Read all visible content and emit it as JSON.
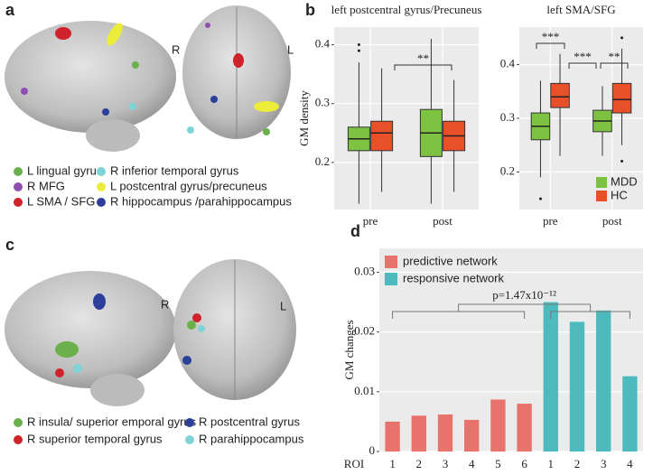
{
  "panels": {
    "a": {
      "label": "a",
      "sides": [
        "R",
        "L"
      ],
      "legend": [
        {
          "label": "L lingual gyrus",
          "color": "#6ab04c"
        },
        {
          "label": "R MFG",
          "color": "#8e4fb0"
        },
        {
          "label": "L SMA / SFG",
          "color": "#d0222a"
        },
        {
          "label": "R inferior temporal gyrus",
          "color": "#7fd3d6"
        },
        {
          "label": "L postcentral gyrus/precuneus",
          "color": "#ecec3a"
        },
        {
          "label": "R hippocampus /parahippocampus",
          "color": "#2c3f9a"
        }
      ]
    },
    "c": {
      "label": "c",
      "sides": [
        "R",
        "L"
      ],
      "legend": [
        {
          "label": "R insula/ superior emporal gyrus",
          "color": "#6ab04c"
        },
        {
          "label": "R postcentral gyrus",
          "color": "#2c3f9a"
        },
        {
          "label": "R superior temporal gyrus",
          "color": "#d0222a"
        },
        {
          "label": "R parahippocampus",
          "color": "#7fd3d6"
        }
      ]
    }
  },
  "chart_data": [
    {
      "type": "box",
      "panel_label": "b",
      "title": "left postcentral gyrus/Precuneus",
      "y_label": "GM density",
      "categories": [
        "pre",
        "post"
      ],
      "series": [
        {
          "color": "#7ec242",
          "values": [
            {
              "min": 0.13,
              "q1": 0.22,
              "median": 0.24,
              "q3": 0.26,
              "max": 0.37,
              "outliers": [
                0.39,
                0.4
              ]
            },
            {
              "min": 0.13,
              "q1": 0.21,
              "median": 0.25,
              "q3": 0.29,
              "max": 0.41,
              "outliers": []
            }
          ]
        },
        {
          "color": "#e8502a",
          "values": [
            {
              "min": 0.15,
              "q1": 0.22,
              "median": 0.25,
              "q3": 0.27,
              "max": 0.36,
              "outliers": []
            },
            {
              "min": 0.15,
              "q1": 0.22,
              "median": 0.245,
              "q3": 0.27,
              "max": 0.34,
              "outliers": []
            }
          ]
        }
      ],
      "ylim": [
        0.12,
        0.43
      ],
      "yticks": [
        0.2,
        0.3,
        0.4
      ],
      "annotations": [
        "**"
      ]
    },
    {
      "type": "box",
      "title": "left SMA/SFG",
      "categories": [
        "pre",
        "post"
      ],
      "series": [
        {
          "name": "MDD",
          "color": "#7ec242",
          "values": [
            {
              "min": 0.19,
              "q1": 0.26,
              "median": 0.285,
              "q3": 0.31,
              "max": 0.37,
              "outliers": [
                0.15
              ]
            },
            {
              "min": 0.23,
              "q1": 0.275,
              "median": 0.295,
              "q3": 0.315,
              "max": 0.36,
              "outliers": []
            }
          ]
        },
        {
          "name": "HC",
          "color": "#e8502a",
          "values": [
            {
              "min": 0.23,
              "q1": 0.32,
              "median": 0.34,
              "q3": 0.365,
              "max": 0.42,
              "outliers": []
            },
            {
              "min": 0.25,
              "q1": 0.31,
              "median": 0.335,
              "q3": 0.365,
              "max": 0.43,
              "outliers": [
                0.45,
                0.22
              ]
            }
          ]
        }
      ],
      "ylim": [
        0.13,
        0.47
      ],
      "yticks": [
        0.2,
        0.3,
        0.4
      ],
      "annotations": [
        "***",
        "***",
        "**"
      ]
    },
    {
      "type": "bar",
      "panel_label": "d",
      "y_label": "GM changes",
      "x_label": "ROI",
      "categories": [
        "1",
        "2",
        "3",
        "4",
        "5",
        "6",
        "1",
        "2",
        "3",
        "4"
      ],
      "series": [
        {
          "name": "predictive network",
          "color": "#e8736c",
          "values": [
            0.005,
            0.006,
            0.0062,
            0.0053,
            0.0087,
            0.008,
            null,
            null,
            null,
            null
          ]
        },
        {
          "name": "responsive network",
          "color": "#4dbbbd",
          "values": [
            null,
            null,
            null,
            null,
            null,
            null,
            0.025,
            0.0217,
            0.0236,
            0.0126
          ]
        }
      ],
      "ylim": [
        0,
        0.034
      ],
      "yticks": [
        0,
        0.01,
        0.02,
        0.03
      ],
      "annotations": [
        "p=1.47x10⁻¹²"
      ]
    }
  ]
}
